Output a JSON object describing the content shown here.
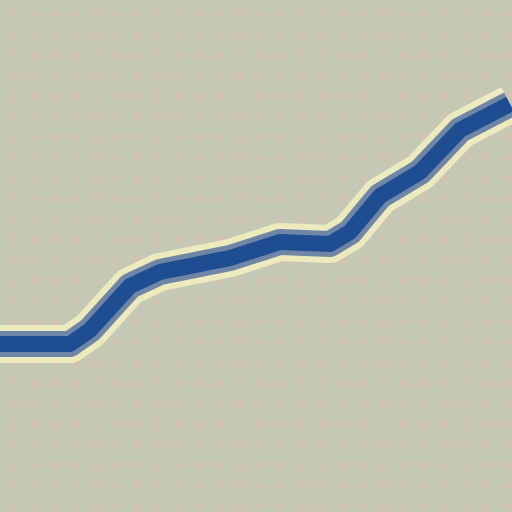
{
  "scene": {
    "description_tag": "",
    "colors": {
      "background": "#c5c8b4",
      "dots": "#d1c3b1",
      "line_core": "#1f4d92",
      "line_glow": "#f3f1c0"
    }
  }
}
